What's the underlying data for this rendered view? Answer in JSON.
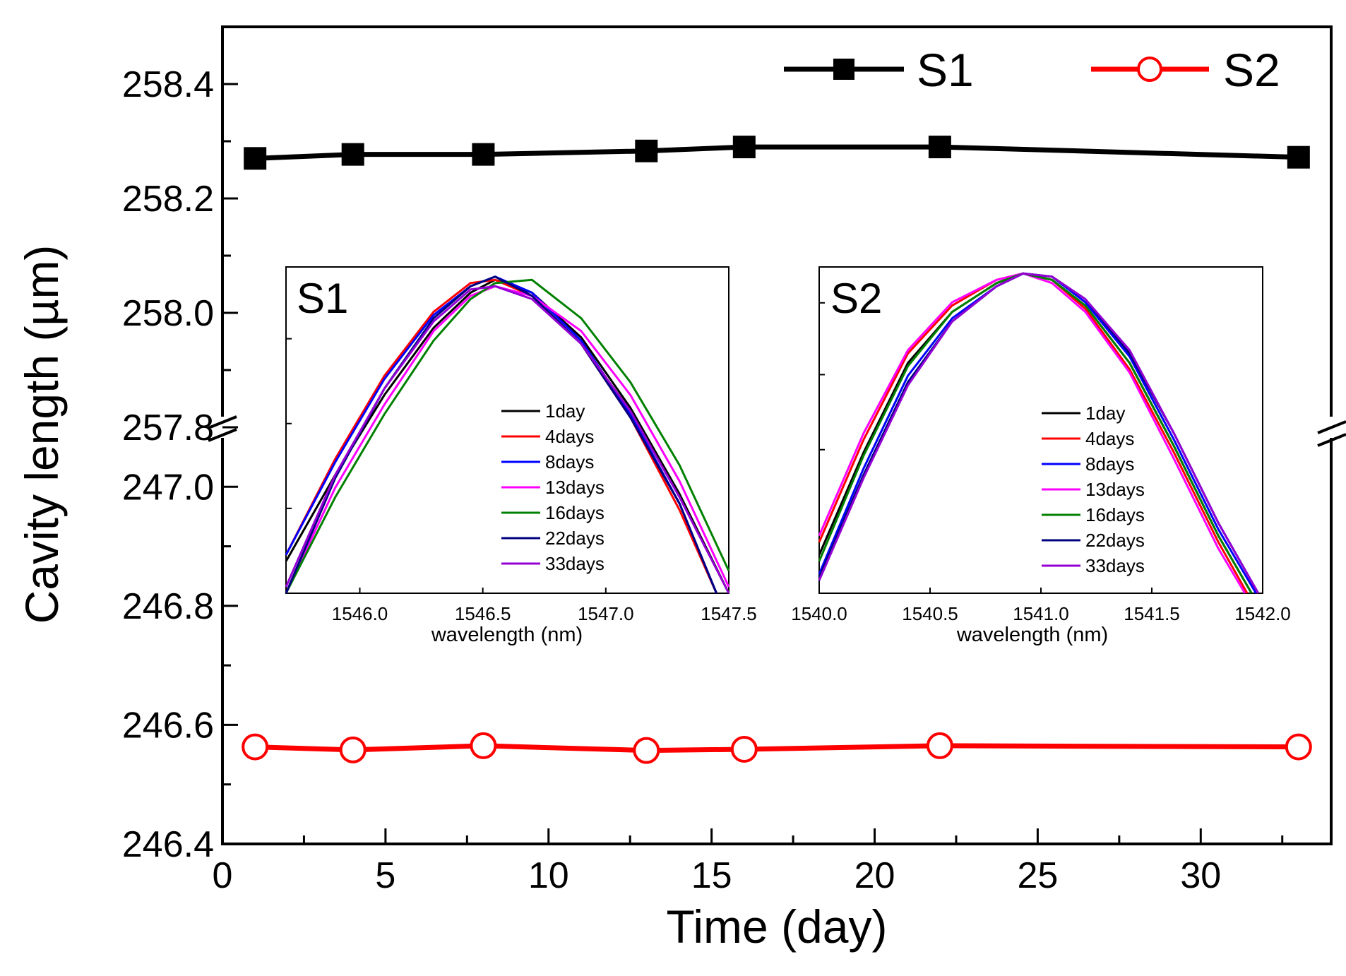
{
  "chart_data": [
    {
      "type": "line",
      "title": "",
      "xlabel": "Time (day)",
      "ylabel": "Cavity length (µm)",
      "xlim": [
        0,
        34
      ],
      "x_ticks": [
        "0",
        "5",
        "10",
        "15",
        "20",
        "25",
        "30"
      ],
      "x_tick_values": [
        0,
        5,
        10,
        15,
        20,
        25,
        30
      ],
      "y_axis_break": true,
      "y_upper_segment": {
        "range": [
          257.8,
          258.5
        ],
        "ticks": [
          "257.8",
          "258.0",
          "258.2",
          "258.4"
        ],
        "tick_values": [
          257.8,
          258.0,
          258.2,
          258.4
        ]
      },
      "y_lower_segment": {
        "range": [
          246.4,
          247.1
        ],
        "ticks": [
          "246.4",
          "246.6",
          "246.8",
          "247.0"
        ],
        "tick_values": [
          246.4,
          246.6,
          246.8,
          247.0
        ]
      },
      "legend_position": "top-right",
      "series": [
        {
          "name": "S1",
          "color": "#000000",
          "marker": "filled-square",
          "segment": "upper",
          "x": [
            1,
            4,
            8,
            13,
            16,
            22,
            33
          ],
          "y": [
            258.27,
            258.277,
            258.277,
            258.283,
            258.29,
            258.29,
            258.272
          ]
        },
        {
          "name": "S2",
          "color": "#ff0000",
          "marker": "open-circle",
          "segment": "lower",
          "x": [
            1,
            4,
            8,
            13,
            16,
            22,
            33
          ],
          "y": [
            246.563,
            246.558,
            246.565,
            246.557,
            246.559,
            246.565,
            246.563
          ]
        }
      ]
    },
    {
      "type": "line",
      "title": "S1",
      "xlabel": "wavelength (nm)",
      "ylabel": "",
      "xlim": [
        1545.7,
        1547.5
      ],
      "x_ticks": [
        "1546.0",
        "1546.5",
        "1547.0",
        "1547.5"
      ],
      "x_tick_values": [
        1546.0,
        1546.5,
        1547.0,
        1547.5
      ],
      "legend_position": "center-right",
      "series": [
        {
          "name": "1day",
          "color": "#000000",
          "x": [
            1545.7,
            1545.9,
            1546.1,
            1546.3,
            1546.45,
            1546.55,
            1546.7,
            1546.9,
            1547.1,
            1547.3,
            1547.5
          ],
          "y": [
            0.1,
            0.37,
            0.62,
            0.83,
            0.94,
            0.98,
            0.94,
            0.8,
            0.58,
            0.31,
            0.0
          ]
        },
        {
          "name": "4days",
          "color": "#ff0000",
          "x": [
            1545.7,
            1545.9,
            1546.1,
            1546.3,
            1546.45,
            1546.55,
            1546.7,
            1546.9,
            1547.1,
            1547.3,
            1547.45
          ],
          "y": [
            0.12,
            0.42,
            0.68,
            0.88,
            0.97,
            0.98,
            0.93,
            0.78,
            0.55,
            0.26,
            0.0
          ]
        },
        {
          "name": "8days",
          "color": "#0000ff",
          "x": [
            1545.7,
            1545.9,
            1546.1,
            1546.3,
            1546.45,
            1546.55,
            1546.7,
            1546.9,
            1547.1,
            1547.3,
            1547.45
          ],
          "y": [
            0.12,
            0.41,
            0.67,
            0.87,
            0.96,
            0.99,
            0.94,
            0.79,
            0.56,
            0.28,
            0.0
          ]
        },
        {
          "name": "13days",
          "color": "#ff00ff",
          "x": [
            1545.7,
            1545.9,
            1546.1,
            1546.3,
            1546.45,
            1546.55,
            1546.7,
            1546.9,
            1547.1,
            1547.3,
            1547.5
          ],
          "y": [
            0.0,
            0.33,
            0.59,
            0.82,
            0.93,
            0.96,
            0.93,
            0.82,
            0.62,
            0.35,
            0.02
          ]
        },
        {
          "name": "16days",
          "color": "#008000",
          "x": [
            1545.7,
            1545.9,
            1546.1,
            1546.3,
            1546.45,
            1546.55,
            1546.7,
            1546.9,
            1547.1,
            1547.3,
            1547.5
          ],
          "y": [
            0.0,
            0.3,
            0.56,
            0.79,
            0.92,
            0.97,
            0.98,
            0.86,
            0.66,
            0.4,
            0.07
          ]
        },
        {
          "name": "22days",
          "color": "#000080",
          "x": [
            1545.7,
            1545.9,
            1546.1,
            1546.3,
            1546.45,
            1546.55,
            1546.7,
            1546.9,
            1547.1,
            1547.3,
            1547.45
          ],
          "y": [
            0.0,
            0.36,
            0.64,
            0.86,
            0.96,
            0.99,
            0.93,
            0.78,
            0.55,
            0.28,
            0.0
          ]
        },
        {
          "name": "33days",
          "color": "#9400d3",
          "x": [
            1545.7,
            1545.9,
            1546.1,
            1546.3,
            1546.45,
            1546.55,
            1546.7,
            1546.9,
            1547.1,
            1547.3,
            1547.5
          ],
          "y": [
            0.02,
            0.37,
            0.64,
            0.85,
            0.95,
            0.96,
            0.92,
            0.78,
            0.57,
            0.3,
            0.0
          ]
        }
      ]
    },
    {
      "type": "line",
      "title": "S2",
      "xlabel": "wavelength (nm)",
      "ylabel": "",
      "xlim": [
        1540.0,
        1542.0
      ],
      "x_ticks": [
        "1540.0",
        "1540.5",
        "1541.0",
        "1541.5",
        "1542.0"
      ],
      "x_tick_values": [
        1540.0,
        1540.5,
        1541.0,
        1541.5,
        1542.0
      ],
      "legend_position": "center-right",
      "series": [
        {
          "name": "1day",
          "color": "#000000",
          "x": [
            1540.0,
            1540.2,
            1540.4,
            1540.6,
            1540.8,
            1540.92,
            1541.05,
            1541.2,
            1541.4,
            1541.6,
            1541.8,
            1541.95
          ],
          "y": [
            0.12,
            0.44,
            0.72,
            0.88,
            0.97,
            1.0,
            0.98,
            0.9,
            0.72,
            0.46,
            0.18,
            0.0
          ]
        },
        {
          "name": "4days",
          "color": "#ff0000",
          "x": [
            1540.0,
            1540.2,
            1540.4,
            1540.6,
            1540.8,
            1540.92,
            1541.05,
            1541.2,
            1541.4,
            1541.6,
            1541.8,
            1541.93
          ],
          "y": [
            0.16,
            0.48,
            0.75,
            0.9,
            0.98,
            1.0,
            0.98,
            0.89,
            0.7,
            0.44,
            0.16,
            0.0
          ]
        },
        {
          "name": "8days",
          "color": "#0000ff",
          "x": [
            1540.0,
            1540.2,
            1540.4,
            1540.6,
            1540.8,
            1540.92,
            1541.05,
            1541.2,
            1541.4,
            1541.6,
            1541.8,
            1541.97
          ],
          "y": [
            0.06,
            0.39,
            0.68,
            0.86,
            0.96,
            1.0,
            0.99,
            0.91,
            0.74,
            0.48,
            0.2,
            0.0
          ]
        },
        {
          "name": "13days",
          "color": "#ff00ff",
          "x": [
            1540.0,
            1540.2,
            1540.4,
            1540.6,
            1540.8,
            1540.92,
            1541.05,
            1541.2,
            1541.4,
            1541.6,
            1541.8,
            1541.92
          ],
          "y": [
            0.18,
            0.5,
            0.76,
            0.91,
            0.98,
            1.0,
            0.97,
            0.88,
            0.69,
            0.42,
            0.14,
            0.0
          ]
        },
        {
          "name": "16days",
          "color": "#008000",
          "x": [
            1540.0,
            1540.2,
            1540.4,
            1540.6,
            1540.8,
            1540.92,
            1541.05,
            1541.2,
            1541.4,
            1541.6,
            1541.8,
            1541.95
          ],
          "y": [
            0.1,
            0.43,
            0.71,
            0.88,
            0.97,
            1.0,
            0.98,
            0.9,
            0.72,
            0.46,
            0.18,
            0.0
          ]
        },
        {
          "name": "22days",
          "color": "#000080",
          "x": [
            1540.0,
            1540.2,
            1540.4,
            1540.6,
            1540.8,
            1540.92,
            1541.05,
            1541.2,
            1541.4,
            1541.6,
            1541.8,
            1541.98
          ],
          "y": [
            0.05,
            0.37,
            0.66,
            0.85,
            0.96,
            1.0,
            0.99,
            0.92,
            0.75,
            0.5,
            0.22,
            0.0
          ]
        },
        {
          "name": "33days",
          "color": "#9400d3",
          "x": [
            1540.0,
            1540.2,
            1540.4,
            1540.6,
            1540.8,
            1540.92,
            1541.05,
            1541.2,
            1541.4,
            1541.6,
            1541.8,
            1541.98
          ],
          "y": [
            0.04,
            0.36,
            0.65,
            0.85,
            0.96,
            1.0,
            0.99,
            0.92,
            0.76,
            0.5,
            0.22,
            0.0
          ]
        }
      ]
    }
  ]
}
